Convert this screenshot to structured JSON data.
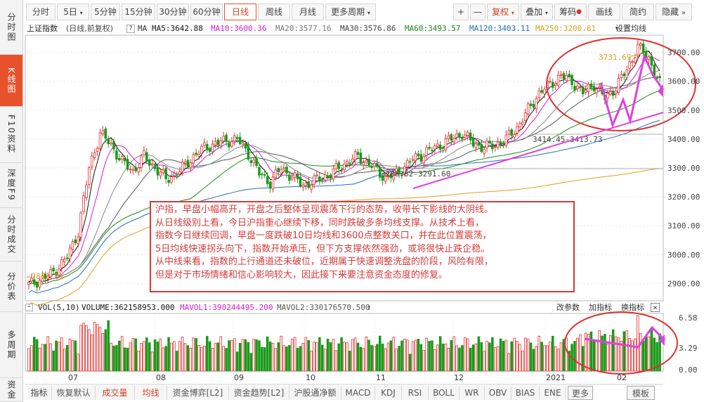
{
  "sidebar": {
    "tabs": [
      "分时图",
      "K线图",
      "F10资料",
      "深度F9",
      "分时成交",
      "分价表",
      "多周期",
      "资金"
    ],
    "active": "K线图"
  },
  "toolbar": {
    "periods": [
      "分时",
      "5日",
      "5分钟",
      "15分钟",
      "30分钟",
      "60分钟",
      "日线",
      "周线",
      "月线",
      "更多周期"
    ],
    "active_period": "日线",
    "zoom_in": "+",
    "zoom_out": "—",
    "adjust": "复权",
    "overlay": "叠加",
    "chips": "筹码",
    "draw": "画线",
    "simple": "简约",
    "hide": "隐藏"
  },
  "info": {
    "name": "上证指数",
    "mode": "(日线,前复权)",
    "help": "?",
    "ma_label": "MA",
    "ma5": "MA5:3642.88",
    "ma10": "MA10:3600.36",
    "ma20": "MA20:3577.16",
    "ma30": "MA30:3576.86",
    "ma60": "MA60:3493.57",
    "ma120": "MA120:3403.11",
    "ma250": "MA250:3200.81",
    "settings": "设置均线"
  },
  "price_axis": [
    "3700.00",
    "3600.00",
    "3500.00",
    "3400.00",
    "3300.00",
    "3200.00",
    "3100.00",
    "3000.00",
    "2900.00"
  ],
  "price_marks": {
    "high": "3731.69",
    "low": "2872.62",
    "range1": "3414.45-3413.73",
    "range2": "3286.62-3291.60"
  },
  "annotation": [
    "沪指，早盘小幅高开，开盘之后整体呈现震荡下行的态势，收带长下影线的大阴线。",
    "从日线级别上看，今日沪指重心继续下移，同时跌破多条均线支撑。从技术上看，",
    "指数今日继续回调，早盘一度跌破10日均线和3600点整数关口，并在此位置震荡，",
    "5日均线快速拐头向下，指数开始承压，但下方支撑依然强劲，或将很快止跌企稳。",
    "从中线来看，指数的上行通道还未破位，近期属于快速调整洗盘的阶段，风险有限，",
    "但是对于市场情绪和信心影响较大，因此接下来要注意资金态度的修复。"
  ],
  "volume": {
    "label": "VOL(5,10)",
    "vol": "VOLUME:362158953.000",
    "mavol1": "MAVOL1:390244495.200",
    "mavol2": "MAVOL2:330176570.500",
    "change_params": "改参数",
    "add_indicator": "加指标",
    "switch_indicator": "换指标",
    "close": "×",
    "axis": [
      "6.58",
      "3.29",
      "0.00"
    ]
  },
  "x_axis": [
    "07",
    "08",
    "09",
    "10",
    "11",
    "12",
    "2021",
    "02"
  ],
  "bottom_tabs": [
    "指标",
    "恢复默认",
    "成交量",
    "均线",
    "资金博弈[L2]",
    "资金趋势[L2]",
    "沪股通净额",
    "MACD",
    "KDJ",
    "RSI",
    "BOLL",
    "WR",
    "OBV",
    "BIAS",
    "ENE",
    "更多",
    "模板"
  ],
  "colors": {
    "up": "#e03030",
    "down": "#1a9a1a",
    "accent": "#e8522b",
    "ma5": "#111111",
    "ma10": "#d020d0",
    "ma20": "#888888",
    "ma30": "#555555",
    "ma60": "#1a8a1a",
    "ma120": "#2070c0",
    "ma250": "#e0a020",
    "annotation": "#d43b3b",
    "arrow": "#e040e0"
  },
  "chart_data": {
    "type": "candlestick",
    "index_range": [
      2872.62,
      3731.69
    ],
    "ylim": [
      2840,
      3760
    ],
    "months": [
      "07",
      "08",
      "09",
      "10",
      "11",
      "12",
      "2021",
      "02"
    ]
  }
}
